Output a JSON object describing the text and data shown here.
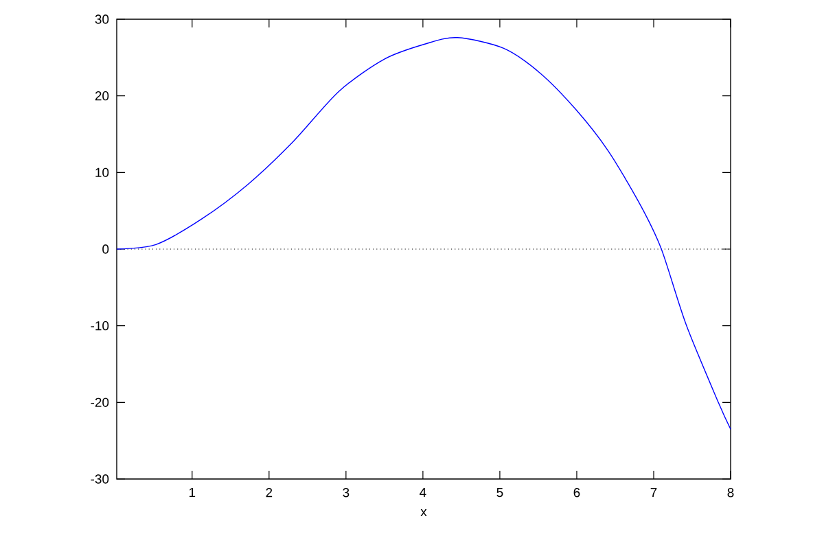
{
  "chart_data": {
    "type": "line",
    "xlabel": "x",
    "xlim": [
      0.02,
      8
    ],
    "ylim": [
      -30,
      30
    ],
    "xticks": [
      1,
      2,
      3,
      4,
      5,
      6,
      7,
      8
    ],
    "yticks": [
      -30,
      -20,
      -10,
      0,
      10,
      20,
      30
    ],
    "x": [
      0.02,
      0.53,
      1.12,
      1.72,
      2.31,
      2.91,
      3.5,
      4.04,
      4.45,
      5.05,
      5.52,
      5.99,
      6.41,
      6.83,
      7.1,
      7.42,
      7.84,
      8.0
    ],
    "series": [
      {
        "color": "#0000ff",
        "values": [
          0.0,
          0.6,
          3.9,
          8.4,
          14.0,
          20.6,
          24.8,
          26.8,
          27.6,
          26.2,
          23.0,
          18.2,
          12.8,
          5.7,
          0.0,
          -9.8,
          -20.0,
          -23.5
        ]
      }
    ],
    "ref_lines": [
      {
        "axis": "y",
        "value": 0,
        "color": "#000000",
        "line_style": "dotted"
      }
    ],
    "grid": false,
    "marker": "none",
    "line_style": "solid"
  }
}
